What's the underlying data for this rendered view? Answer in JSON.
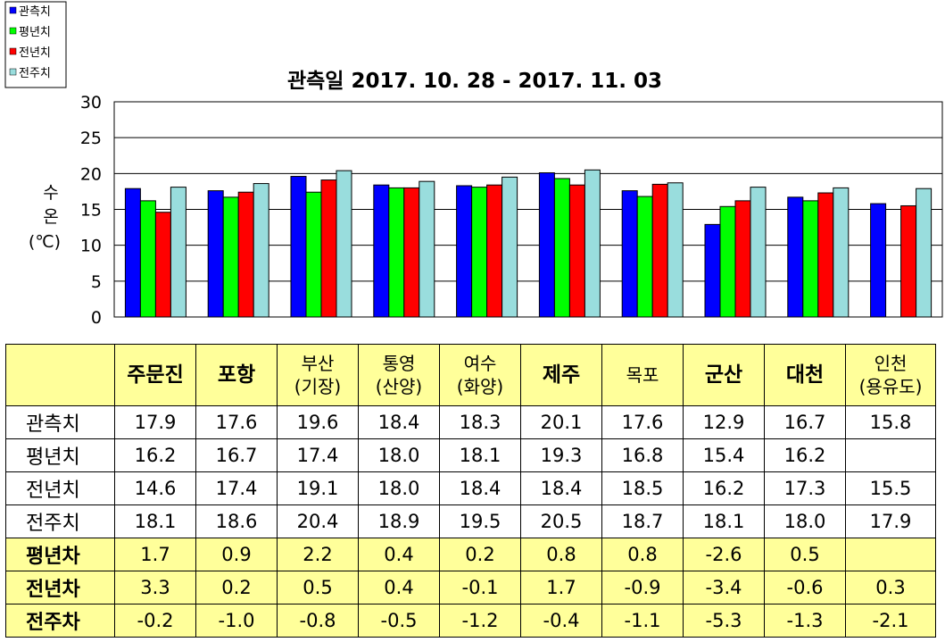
{
  "chart_data": {
    "type": "bar",
    "title": "관측일 2017. 10. 28 - 2017. 11. 03",
    "ylabel": [
      "수",
      "온",
      "(℃)"
    ],
    "ylim": [
      0,
      30
    ],
    "yticks": [
      0,
      5,
      10,
      15,
      20,
      25,
      30
    ],
    "grid": true,
    "legend_position": "top-left",
    "categories": [
      {
        "label": [
          "주문진"
        ],
        "bold": true
      },
      {
        "label": [
          "포항"
        ],
        "bold": true
      },
      {
        "label": [
          "부산",
          "(기장)"
        ],
        "bold": false
      },
      {
        "label": [
          "통영",
          "(산양)"
        ],
        "bold": false
      },
      {
        "label": [
          "여수",
          "(화양)"
        ],
        "bold": false
      },
      {
        "label": [
          "제주"
        ],
        "bold": true
      },
      {
        "label": [
          "목포"
        ],
        "bold": false
      },
      {
        "label": [
          "군산"
        ],
        "bold": true
      },
      {
        "label": [
          "대천"
        ],
        "bold": true
      },
      {
        "label": [
          "인천",
          "(용유도)"
        ],
        "bold": false
      }
    ],
    "series": [
      {
        "name": "관측치",
        "color": "#0000ff",
        "values": [
          17.9,
          17.6,
          19.6,
          18.4,
          18.3,
          20.1,
          17.6,
          12.9,
          16.7,
          15.8
        ]
      },
      {
        "name": "평년치",
        "color": "#00ff00",
        "values": [
          16.2,
          16.7,
          17.4,
          18.0,
          18.1,
          19.3,
          16.8,
          15.4,
          16.2,
          null
        ]
      },
      {
        "name": "전년치",
        "color": "#ff0000",
        "values": [
          14.6,
          17.4,
          19.1,
          18.0,
          18.4,
          18.4,
          18.5,
          16.2,
          17.3,
          15.5
        ]
      },
      {
        "name": "전주치",
        "color": "#99dddd",
        "values": [
          18.1,
          18.6,
          20.4,
          18.9,
          19.5,
          20.5,
          18.7,
          18.1,
          18.0,
          17.9
        ]
      }
    ]
  },
  "table": {
    "value_rows": [
      {
        "name": "관측치",
        "cells": [
          "17.9",
          "17.6",
          "19.6",
          "18.4",
          "18.3",
          "20.1",
          "17.6",
          "12.9",
          "16.7",
          "15.8"
        ]
      },
      {
        "name": "평년치",
        "cells": [
          "16.2",
          "16.7",
          "17.4",
          "18.0",
          "18.1",
          "19.3",
          "16.8",
          "15.4",
          "16.2",
          ""
        ]
      },
      {
        "name": "전년치",
        "cells": [
          "14.6",
          "17.4",
          "19.1",
          "18.0",
          "18.4",
          "18.4",
          "18.5",
          "16.2",
          "17.3",
          "15.5"
        ]
      },
      {
        "name": "전주치",
        "cells": [
          "18.1",
          "18.6",
          "20.4",
          "18.9",
          "19.5",
          "20.5",
          "18.7",
          "18.1",
          "18.0",
          "17.9"
        ]
      }
    ],
    "diff_rows": [
      {
        "name": "평년차",
        "cells": [
          "1.7",
          "0.9",
          "2.2",
          "0.4",
          "0.2",
          "0.8",
          "0.8",
          "-2.6",
          "0.5",
          ""
        ]
      },
      {
        "name": "전년차",
        "cells": [
          "3.3",
          "0.2",
          "0.5",
          "0.4",
          "-0.1",
          "1.7",
          "-0.9",
          "-3.4",
          "-0.6",
          "0.3"
        ]
      },
      {
        "name": "전주차",
        "cells": [
          "-0.2",
          "-1.0",
          "-0.8",
          "-0.5",
          "-1.2",
          "-0.4",
          "-1.1",
          "-5.3",
          "-1.3",
          "-2.1"
        ]
      }
    ]
  }
}
